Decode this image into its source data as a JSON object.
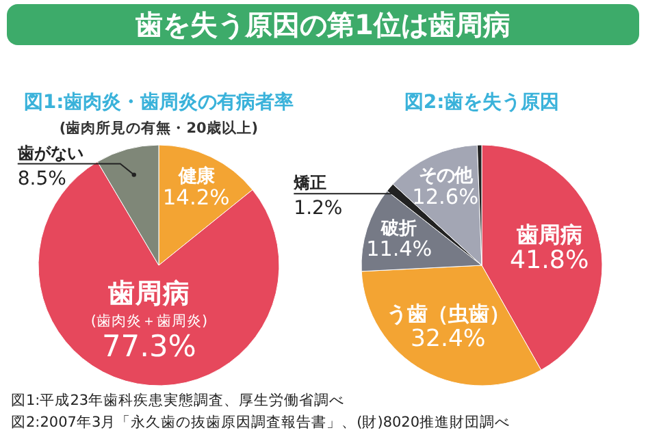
{
  "chart_data": [
    {
      "type": "other",
      "title": "歯を失う原因の第1位は歯周病",
      "color": "#3dab6a"
    },
    {
      "type": "pie",
      "title": "図1:歯肉炎・歯周炎の有病者率",
      "subtitle": "(歯肉所見の有無・20歳以上)",
      "categories": [
        "健康",
        "歯周病",
        "歯がない"
      ],
      "values": [
        14.2,
        77.3,
        8.5
      ],
      "value_labels": [
        "14.2%",
        "77.3%",
        "8.5%"
      ],
      "colors": [
        "#f3a433",
        "#e6485c",
        "#7f8778"
      ],
      "annotations": [
        {
          "text": "(歯肉炎＋歯周炎)",
          "x": "歯周病"
        },
        "図1:平成23年歯科疾患実態調査、厚生労働省調べ"
      ]
    },
    {
      "type": "pie",
      "title": "図2:歯を失う原因",
      "categories": [
        "歯周病",
        "う歯（虫歯）",
        "破折",
        "矯正",
        "その他",
        null
      ],
      "values": [
        41.8,
        32.4,
        11.4,
        1.2,
        12.6,
        0.6
      ],
      "value_labels": [
        "41.8%",
        "32.4%",
        "11.4%",
        "1.2%",
        "12.6%",
        null
      ],
      "colors": [
        "#e6485c",
        "#f3a433",
        "#767a86",
        "#222222",
        "#a3a6b4",
        "#222222"
      ],
      "annotations": [
        "図2:2007年3月「永久歯の抜歯原因調査報告書」、(財)8020推進財団調べ"
      ]
    }
  ]
}
